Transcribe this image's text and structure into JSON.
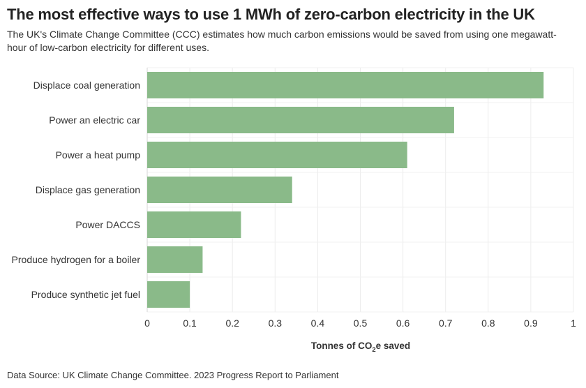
{
  "title": "The most effective ways to use 1 MWh of zero-carbon electricity in the UK",
  "subtitle": "The UK's Climate Change Committee (CCC) estimates how much carbon emissions would be saved from using one megawatt-hour of low-carbon electricity for different uses.",
  "source": "Data Source: UK Climate Change Committee. 2023 Progress Report to Parliament",
  "chart_data": {
    "type": "bar",
    "orientation": "horizontal",
    "categories": [
      "Displace coal generation",
      "Power an electric car",
      "Power a heat pump",
      "Displace gas generation",
      "Power DACCS",
      "Produce hydrogen for a boiler",
      "Produce synthetic jet fuel"
    ],
    "values": [
      0.93,
      0.72,
      0.61,
      0.34,
      0.22,
      0.13,
      0.1
    ],
    "xlim": [
      0,
      1
    ],
    "xticks": [
      "0",
      "0.1",
      "0.2",
      "0.3",
      "0.4",
      "0.5",
      "0.6",
      "0.7",
      "0.8",
      "0.9",
      "1"
    ],
    "xlabel": {
      "before": "Tonnes of CO",
      "sub": "2",
      "after": "e saved"
    },
    "ylabel": "",
    "bar_color": "#8aba89",
    "grid": true
  }
}
